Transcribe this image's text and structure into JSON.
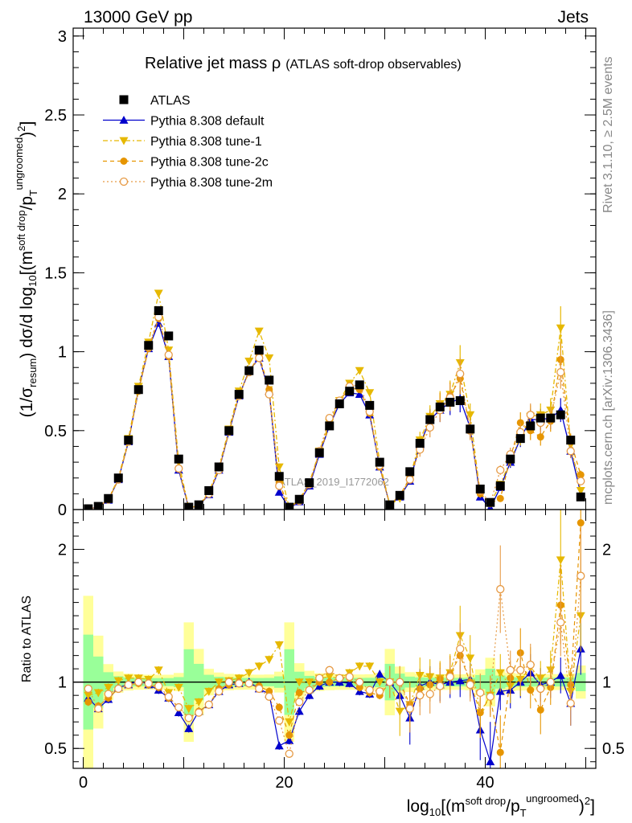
{
  "header": {
    "left": "13000 GeV pp",
    "right": "Jets",
    "plot_title": "Relative jet mass ρ",
    "plot_subtitle": "(ATLAS soft-drop observables)",
    "watermark": "ATLAS_2019_I1772062",
    "side_rivet": "Rivet 3.1.10, ≥ 2.5M events",
    "side_mcplots": "mcplots.cern.ch [arXiv:1306.3436]"
  },
  "axes": {
    "ylabel_main": "(1/σresum) dσ/d log10[(msoft drop/pTungroomed)2]",
    "ylabel_ratio": "Ratio to ATLAS",
    "xlabel": "log10[(msoft drop/pTungroomed)2]"
  },
  "legend": [
    {
      "label": "ATLAS",
      "color": "#000000",
      "marker": "square",
      "dash": ""
    },
    {
      "label": "Pythia 8.308 default",
      "color": "#0000cc",
      "marker": "triangle-up",
      "dash": ""
    },
    {
      "label": "Pythia 8.308 tune-1",
      "color": "#e6b800",
      "marker": "triangle-down",
      "dash": "6,3,2,3"
    },
    {
      "label": "Pythia 8.308 tune-2c",
      "color": "#e69500",
      "marker": "circle",
      "dash": "5,4"
    },
    {
      "label": "Pythia 8.308 tune-2m",
      "color": "#e69a45",
      "marker": "open-circle",
      "dash": "2,3"
    }
  ],
  "chart_data": {
    "type": "scatter",
    "x": [
      0.5,
      1.5,
      2.5,
      3.5,
      4.5,
      5.5,
      6.5,
      7.5,
      8.5,
      9.5,
      10.5,
      11.5,
      12.5,
      13.5,
      14.5,
      15.5,
      16.5,
      17.5,
      18.5,
      19.5,
      20.5,
      21.5,
      22.5,
      23.5,
      24.5,
      25.5,
      26.5,
      27.5,
      28.5,
      29.5,
      30.5,
      31.5,
      32.5,
      33.5,
      34.5,
      35.5,
      36.5,
      37.5,
      38.5,
      39.5,
      40.5,
      41.5,
      42.5,
      43.5,
      44.5,
      45.5,
      46.5,
      47.5,
      48.5,
      49.5
    ],
    "xlim": [
      -1,
      51
    ],
    "ylim_main": [
      0,
      3.05
    ],
    "ylim_ratio": [
      0.35,
      2.3
    ],
    "yticks_main": [
      0,
      0.5,
      1,
      1.5,
      2,
      2.5,
      3
    ],
    "yticks_ratio": [
      0.5,
      1,
      2
    ],
    "xticks_labeled": [
      0,
      20,
      40
    ],
    "series": [
      {
        "name": "ATLAS",
        "values": [
          0.005,
          0.02,
          0.07,
          0.2,
          0.44,
          0.76,
          1.04,
          1.26,
          1.1,
          0.32,
          0.015,
          0.03,
          0.12,
          0.27,
          0.5,
          0.73,
          0.88,
          1.01,
          0.82,
          0.21,
          0.015,
          0.065,
          0.17,
          0.36,
          0.53,
          0.67,
          0.75,
          0.79,
          0.66,
          0.3,
          0.03,
          0.09,
          0.24,
          0.42,
          0.57,
          0.65,
          0.68,
          0.69,
          0.51,
          0.13,
          0.045,
          0.15,
          0.32,
          0.45,
          0.53,
          0.58,
          0.58,
          0.6,
          0.44,
          0.08
        ]
      },
      {
        "name": "Pythia 8.308 default",
        "values": [
          0.004,
          0.016,
          0.06,
          0.19,
          0.43,
          0.76,
          1.02,
          1.18,
          0.97,
          0.25,
          0.01,
          0.023,
          0.095,
          0.25,
          0.49,
          0.72,
          0.88,
          0.96,
          0.75,
          0.11,
          0.008,
          0.05,
          0.15,
          0.35,
          0.53,
          0.67,
          0.74,
          0.73,
          0.6,
          0.27,
          0.03,
          0.08,
          0.18,
          0.41,
          0.57,
          0.63,
          0.68,
          0.7,
          0.52,
          0.08,
          0.008,
          0.14,
          0.3,
          0.45,
          0.57,
          0.57,
          0.58,
          0.63,
          0.37,
          0.1
        ]
      },
      {
        "name": "Pythia 8.308 tune-1",
        "values": [
          0.004,
          0.016,
          0.065,
          0.2,
          0.45,
          0.78,
          1.06,
          1.37,
          1.01,
          0.3,
          0.012,
          0.025,
          0.11,
          0.27,
          0.51,
          0.75,
          0.94,
          1.13,
          0.96,
          0.27,
          0.01,
          0.065,
          0.17,
          0.37,
          0.55,
          0.69,
          0.8,
          0.88,
          0.74,
          0.3,
          0.03,
          0.07,
          0.2,
          0.44,
          0.59,
          0.67,
          0.73,
          0.93,
          0.6,
          0.1,
          0.04,
          0.16,
          0.31,
          0.46,
          0.59,
          0.6,
          0.63,
          1.15,
          0.41,
          0.12
        ]
      },
      {
        "name": "Pythia 8.308 tune-2c",
        "values": [
          0.004,
          0.017,
          0.062,
          0.19,
          0.43,
          0.75,
          1.02,
          1.21,
          0.97,
          0.26,
          0.011,
          0.023,
          0.1,
          0.26,
          0.49,
          0.73,
          0.87,
          0.98,
          0.76,
          0.17,
          0.009,
          0.06,
          0.16,
          0.36,
          0.53,
          0.69,
          0.77,
          0.76,
          0.61,
          0.27,
          0.03,
          0.09,
          0.2,
          0.4,
          0.56,
          0.66,
          0.72,
          0.83,
          0.51,
          0.1,
          0.04,
          0.07,
          0.33,
          0.55,
          0.5,
          0.46,
          0.56,
          0.95,
          0.43,
          0.22
        ]
      },
      {
        "name": "Pythia 8.308 tune-2m",
        "values": [
          0.004,
          0.016,
          0.064,
          0.19,
          0.43,
          0.76,
          1.03,
          1.22,
          0.98,
          0.26,
          0.011,
          0.023,
          0.1,
          0.25,
          0.5,
          0.72,
          0.87,
          0.96,
          0.73,
          0.15,
          0.008,
          0.055,
          0.16,
          0.37,
          0.58,
          0.69,
          0.78,
          0.79,
          0.62,
          0.28,
          0.03,
          0.09,
          0.19,
          0.38,
          0.52,
          0.63,
          0.71,
          0.86,
          0.5,
          0.12,
          0.04,
          0.25,
          0.35,
          0.49,
          0.6,
          0.55,
          0.58,
          0.87,
          0.37,
          0.18
        ]
      }
    ],
    "ratio_series": [
      {
        "name": "Pythia 8.308 default",
        "values": [
          0.88,
          0.8,
          0.87,
          0.96,
          0.98,
          1.01,
          0.98,
          0.94,
          0.88,
          0.77,
          0.65,
          0.78,
          0.83,
          0.93,
          0.98,
          0.99,
          1,
          0.95,
          0.91,
          0.52,
          0.56,
          0.78,
          0.9,
          0.97,
          1,
          1,
          0.99,
          0.93,
          0.91,
          1.06,
          1,
          0.9,
          0.73,
          0.97,
          1,
          0.98,
          1,
          1.01,
          1.02,
          0.64,
          0.4,
          0.93,
          0.94,
          1,
          1.07,
          0.98,
          1,
          1.05,
          0.84,
          1.25
        ]
      },
      {
        "name": "Pythia 8.308 tune-1",
        "values": [
          0.9,
          0.92,
          0.96,
          1.01,
          1.03,
          1.03,
          1.02,
          1.09,
          0.92,
          0.96,
          0.8,
          0.85,
          0.93,
          1,
          1.01,
          1.03,
          1.07,
          1.12,
          1.17,
          1.28,
          0.7,
          1,
          1,
          1.03,
          1.04,
          1.03,
          1.07,
          1.12,
          1.12,
          1,
          1,
          0.78,
          0.83,
          1.05,
          1.04,
          1.03,
          1.07,
          1.35,
          1.18,
          0.77,
          0.9,
          1.07,
          0.97,
          1.02,
          1.11,
          1.03,
          1.09,
          1.92,
          0.93,
          1.5
        ]
      },
      {
        "name": "Pythia 8.308 tune-2c",
        "values": [
          0.85,
          0.82,
          0.88,
          0.95,
          0.98,
          0.99,
          0.98,
          0.96,
          0.88,
          0.81,
          0.73,
          0.78,
          0.83,
          0.95,
          0.98,
          1,
          0.99,
          0.97,
          0.93,
          0.81,
          0.6,
          0.92,
          0.94,
          1,
          1,
          1.03,
          1.03,
          0.96,
          0.92,
          0.9,
          1,
          1,
          0.83,
          0.95,
          0.98,
          1.02,
          1.06,
          1.2,
          1,
          0.77,
          0.89,
          0.47,
          1.03,
          1.22,
          0.94,
          0.79,
          0.96,
          1.58,
          0.98,
          2.2
        ]
      },
      {
        "name": "Pythia 8.308 tune-2m",
        "values": [
          0.95,
          0.8,
          0.91,
          0.95,
          0.98,
          1,
          0.99,
          0.97,
          0.89,
          0.81,
          0.73,
          0.77,
          0.83,
          0.93,
          1,
          0.99,
          0.99,
          0.95,
          0.89,
          0.71,
          0.46,
          0.85,
          0.94,
          1.03,
          1.09,
          1.03,
          1.04,
          1,
          0.94,
          0.93,
          1,
          1,
          0.8,
          0.9,
          0.91,
          0.97,
          1.04,
          1.25,
          0.98,
          0.92,
          0.89,
          1.7,
          1.09,
          1.09,
          1.13,
          0.95,
          1,
          1.45,
          0.84,
          1.8
        ]
      }
    ]
  }
}
